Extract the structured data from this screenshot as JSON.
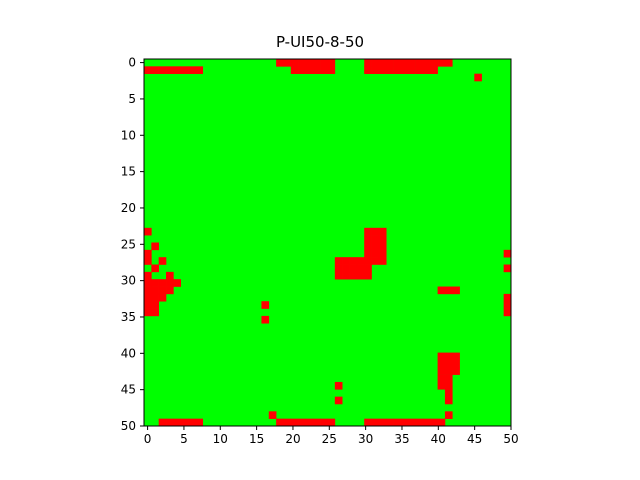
{
  "chart_data": {
    "type": "heatmap",
    "title": "P-UI50-8-50",
    "xlabel": "",
    "ylabel": "",
    "grid_size": 50,
    "xlim": [
      0,
      50
    ],
    "ylim": [
      50,
      0
    ],
    "x_ticks": [
      0,
      5,
      10,
      15,
      20,
      25,
      30,
      35,
      40,
      45,
      50
    ],
    "y_ticks": [
      0,
      5,
      10,
      15,
      20,
      25,
      30,
      35,
      40,
      45,
      50
    ],
    "colors": {
      "background": "#00ff00",
      "marked": "#ff0000"
    },
    "grid": false,
    "marked_cells": [
      [
        0,
        18
      ],
      [
        0,
        19
      ],
      [
        0,
        20
      ],
      [
        0,
        21
      ],
      [
        0,
        22
      ],
      [
        0,
        23
      ],
      [
        0,
        24
      ],
      [
        0,
        25
      ],
      [
        0,
        30
      ],
      [
        0,
        31
      ],
      [
        0,
        32
      ],
      [
        0,
        33
      ],
      [
        0,
        34
      ],
      [
        0,
        35
      ],
      [
        0,
        36
      ],
      [
        0,
        37
      ],
      [
        0,
        38
      ],
      [
        0,
        39
      ],
      [
        0,
        40
      ],
      [
        0,
        41
      ],
      [
        1,
        0
      ],
      [
        1,
        1
      ],
      [
        1,
        2
      ],
      [
        1,
        3
      ],
      [
        1,
        4
      ],
      [
        1,
        5
      ],
      [
        1,
        6
      ],
      [
        1,
        7
      ],
      [
        1,
        20
      ],
      [
        1,
        21
      ],
      [
        1,
        22
      ],
      [
        1,
        23
      ],
      [
        1,
        24
      ],
      [
        1,
        25
      ],
      [
        1,
        30
      ],
      [
        1,
        31
      ],
      [
        1,
        32
      ],
      [
        1,
        33
      ],
      [
        1,
        34
      ],
      [
        1,
        35
      ],
      [
        1,
        36
      ],
      [
        1,
        37
      ],
      [
        1,
        38
      ],
      [
        1,
        39
      ],
      [
        2,
        45
      ],
      [
        23,
        30
      ],
      [
        23,
        31
      ],
      [
        23,
        32
      ],
      [
        24,
        30
      ],
      [
        24,
        31
      ],
      [
        24,
        32
      ],
      [
        25,
        30
      ],
      [
        25,
        31
      ],
      [
        25,
        32
      ],
      [
        26,
        30
      ],
      [
        26,
        31
      ],
      [
        26,
        32
      ],
      [
        27,
        26
      ],
      [
        27,
        27
      ],
      [
        27,
        28
      ],
      [
        27,
        29
      ],
      [
        27,
        30
      ],
      [
        27,
        31
      ],
      [
        27,
        32
      ],
      [
        28,
        26
      ],
      [
        28,
        27
      ],
      [
        28,
        28
      ],
      [
        28,
        29
      ],
      [
        28,
        30
      ],
      [
        29,
        26
      ],
      [
        29,
        27
      ],
      [
        29,
        28
      ],
      [
        29,
        29
      ],
      [
        29,
        30
      ],
      [
        23,
        0
      ],
      [
        25,
        1
      ],
      [
        26,
        0
      ],
      [
        27,
        0
      ],
      [
        27,
        2
      ],
      [
        28,
        1
      ],
      [
        29,
        0
      ],
      [
        29,
        3
      ],
      [
        30,
        0
      ],
      [
        30,
        1
      ],
      [
        30,
        2
      ],
      [
        30,
        3
      ],
      [
        30,
        4
      ],
      [
        31,
        0
      ],
      [
        31,
        1
      ],
      [
        31,
        2
      ],
      [
        31,
        3
      ],
      [
        32,
        0
      ],
      [
        32,
        1
      ],
      [
        32,
        2
      ],
      [
        33,
        0
      ],
      [
        33,
        1
      ],
      [
        34,
        0
      ],
      [
        34,
        1
      ],
      [
        26,
        49
      ],
      [
        28,
        49
      ],
      [
        32,
        49
      ],
      [
        33,
        49
      ],
      [
        34,
        49
      ],
      [
        31,
        40
      ],
      [
        31,
        41
      ],
      [
        31,
        42
      ],
      [
        33,
        16
      ],
      [
        35,
        16
      ],
      [
        40,
        40
      ],
      [
        40,
        41
      ],
      [
        40,
        42
      ],
      [
        41,
        40
      ],
      [
        41,
        41
      ],
      [
        41,
        42
      ],
      [
        42,
        40
      ],
      [
        42,
        41
      ],
      [
        42,
        42
      ],
      [
        43,
        40
      ],
      [
        43,
        41
      ],
      [
        44,
        40
      ],
      [
        44,
        41
      ],
      [
        45,
        41
      ],
      [
        46,
        41
      ],
      [
        48,
        41
      ],
      [
        44,
        26
      ],
      [
        46,
        26
      ],
      [
        48,
        17
      ],
      [
        49,
        2
      ],
      [
        49,
        3
      ],
      [
        49,
        4
      ],
      [
        49,
        5
      ],
      [
        49,
        6
      ],
      [
        49,
        7
      ],
      [
        49,
        18
      ],
      [
        49,
        19
      ],
      [
        49,
        20
      ],
      [
        49,
        21
      ],
      [
        49,
        22
      ],
      [
        49,
        23
      ],
      [
        49,
        24
      ],
      [
        49,
        25
      ],
      [
        49,
        30
      ],
      [
        49,
        31
      ],
      [
        49,
        32
      ],
      [
        49,
        33
      ],
      [
        49,
        34
      ],
      [
        49,
        35
      ],
      [
        49,
        36
      ],
      [
        49,
        37
      ],
      [
        49,
        38
      ],
      [
        49,
        39
      ],
      [
        49,
        40
      ]
    ]
  }
}
